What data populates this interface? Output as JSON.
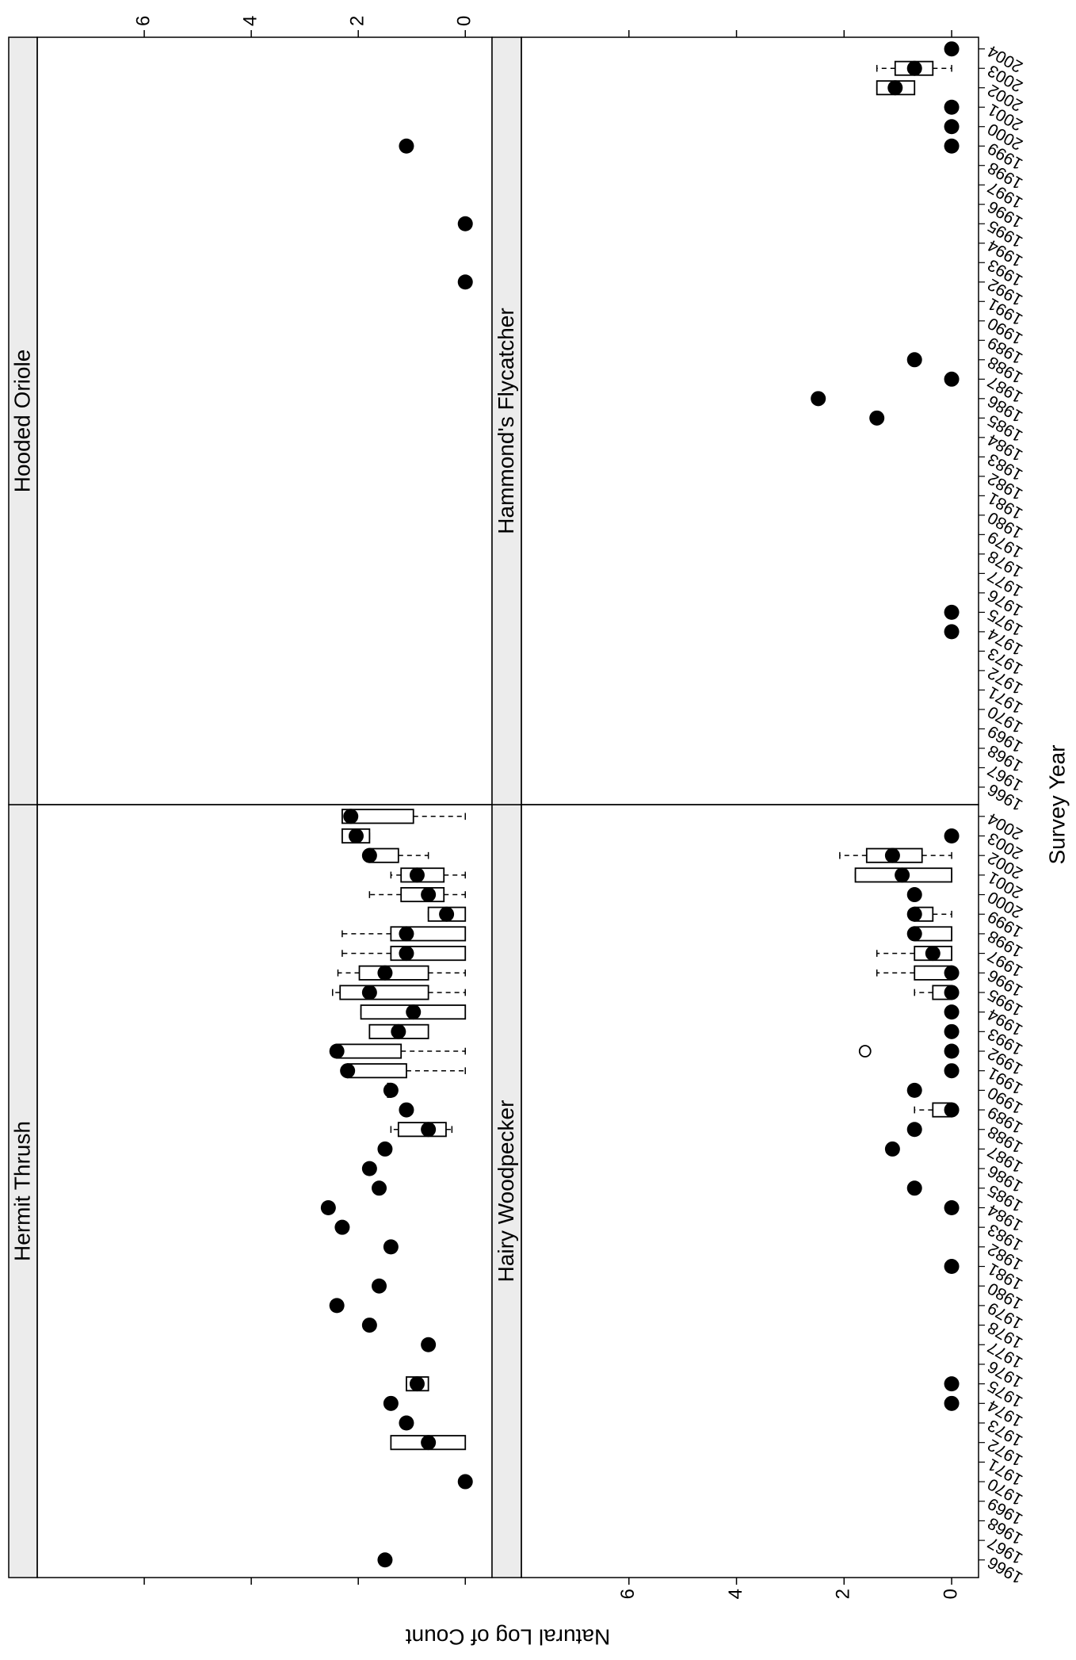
{
  "chart_data": {
    "type": "boxplot",
    "xlabel": "Survey Year",
    "ylabel": "Natural Log of Count",
    "xlim": [
      1965.1,
      2004.6
    ],
    "ylim": [
      -0.5,
      8
    ],
    "xticks": [
      1966,
      1967,
      1968,
      1969,
      1970,
      1971,
      1972,
      1973,
      1974,
      1975,
      1976,
      1977,
      1978,
      1979,
      1980,
      1981,
      1982,
      1983,
      1984,
      1985,
      1986,
      1987,
      1988,
      1989,
      1990,
      1991,
      1992,
      1993,
      1994,
      1995,
      1996,
      1997,
      1998,
      1999,
      2000,
      2001,
      2002,
      2003,
      2004
    ],
    "yticks": [
      0,
      2,
      4,
      6
    ],
    "color": "#000000",
    "panels": [
      {
        "title": "Hermit Thrush",
        "x": [
          1966,
          1970,
          1972,
          1973,
          1974,
          1975,
          1977,
          1978,
          1979,
          1980,
          1982,
          1983,
          1984,
          1985,
          1986,
          1987,
          1988,
          1989,
          1990,
          1991,
          1992,
          1993,
          1994,
          1995,
          1996,
          1997,
          1998,
          1999,
          2000,
          2001,
          2002,
          2003,
          2004
        ],
        "median": [
          1.5,
          0,
          0.69,
          1.1,
          1.39,
          0.9,
          0.69,
          1.79,
          2.4,
          1.61,
          1.39,
          2.3,
          2.56,
          1.61,
          1.79,
          1.5,
          0.69,
          1.1,
          1.39,
          2.2,
          2.4,
          1.25,
          0.97,
          1.79,
          1.5,
          1.1,
          1.1,
          0.35,
          0.69,
          0.9,
          1.79,
          2.04,
          2.14
        ],
        "boxes": [
          {
            "x": 1972,
            "whisker_low": 0,
            "q1": 0,
            "q3": 1.39,
            "whisker_high": 1.39
          },
          {
            "x": 1975,
            "whisker_low": 0.69,
            "q1": 0.69,
            "q3": 1.1,
            "whisker_high": 1.1
          },
          {
            "x": 1988,
            "whisker_low": 0.25,
            "q1": 0.36,
            "q3": 1.25,
            "whisker_high": 1.39
          },
          {
            "x": 1990,
            "whisker_low": 1.3,
            "q1": 1.39,
            "q3": 1.45,
            "whisker_high": 1.5
          },
          {
            "x": 1991,
            "whisker_low": 0,
            "q1": 1.1,
            "q3": 2.2,
            "whisker_high": 2.2
          },
          {
            "x": 1992,
            "whisker_low": 0,
            "q1": 1.2,
            "q3": 2.4,
            "whisker_high": 2.45
          },
          {
            "x": 1993,
            "whisker_low": 0.69,
            "q1": 0.69,
            "q3": 1.79,
            "whisker_high": 1.79
          },
          {
            "x": 1994,
            "whisker_low": 0,
            "q1": 0,
            "q3": 1.95,
            "whisker_high": 1.95
          },
          {
            "x": 1995,
            "whisker_low": 0,
            "q1": 0.69,
            "q3": 2.34,
            "whisker_high": 2.48
          },
          {
            "x": 1996,
            "whisker_low": 0,
            "q1": 0.69,
            "q3": 1.98,
            "whisker_high": 2.38
          },
          {
            "x": 1997,
            "whisker_low": 0,
            "q1": 0,
            "q3": 1.39,
            "whisker_high": 2.3
          },
          {
            "x": 1998,
            "whisker_low": 0,
            "q1": 0,
            "q3": 1.39,
            "whisker_high": 2.3
          },
          {
            "x": 1999,
            "whisker_low": 0,
            "q1": 0,
            "q3": 0.69,
            "whisker_high": 0.69
          },
          {
            "x": 2000,
            "whisker_low": 0,
            "q1": 0.4,
            "q3": 1.2,
            "whisker_high": 1.79
          },
          {
            "x": 2001,
            "whisker_low": 0,
            "q1": 0.4,
            "q3": 1.2,
            "whisker_high": 1.39
          },
          {
            "x": 2002,
            "whisker_low": 0.69,
            "q1": 1.25,
            "q3": 1.79,
            "whisker_high": 1.79
          },
          {
            "x": 2003,
            "whisker_low": 1.79,
            "q1": 1.79,
            "q3": 2.3,
            "whisker_high": 2.3
          },
          {
            "x": 2004,
            "whisker_low": 0,
            "q1": 0.97,
            "q3": 2.3,
            "whisker_high": 2.3
          }
        ],
        "outliers": []
      },
      {
        "title": "Hooded Oriole",
        "x": [
          1992,
          1995,
          1999
        ],
        "median": [
          0,
          0,
          1.1
        ],
        "boxes": [],
        "outliers": []
      },
      {
        "title": "Hairy Woodpecker",
        "x": [
          1974,
          1975,
          1981,
          1984,
          1985,
          1987,
          1988,
          1989,
          1990,
          1991,
          1992,
          1993,
          1994,
          1995,
          1996,
          1997,
          1998,
          1999,
          2000,
          2001,
          2002,
          2003
        ],
        "median": [
          0,
          0,
          0,
          0,
          0.69,
          1.1,
          0.69,
          0,
          0.69,
          0,
          0,
          0,
          0,
          0,
          0,
          0.35,
          0.69,
          0.69,
          0.69,
          0.92,
          1.1,
          0
        ],
        "boxes": [
          {
            "x": 1989,
            "whisker_low": 0,
            "q1": 0,
            "q3": 0.35,
            "whisker_high": 0.69
          },
          {
            "x": 1995,
            "whisker_low": 0,
            "q1": 0,
            "q3": 0.35,
            "whisker_high": 0.69
          },
          {
            "x": 1996,
            "whisker_low": 0,
            "q1": 0,
            "q3": 0.69,
            "whisker_high": 1.39
          },
          {
            "x": 1997,
            "whisker_low": 0,
            "q1": 0,
            "q3": 0.69,
            "whisker_high": 1.39
          },
          {
            "x": 1998,
            "whisker_low": 0,
            "q1": 0,
            "q3": 0.69,
            "whisker_high": 0.69
          },
          {
            "x": 1999,
            "whisker_low": 0,
            "q1": 0.35,
            "q3": 0.69,
            "whisker_high": 0.69
          },
          {
            "x": 2001,
            "whisker_low": 0,
            "q1": 0,
            "q3": 1.79,
            "whisker_high": 1.79
          },
          {
            "x": 2002,
            "whisker_low": 0,
            "q1": 0.55,
            "q3": 1.58,
            "whisker_high": 2.08
          }
        ],
        "outliers": [
          {
            "x": 1992,
            "y": 1.61
          }
        ]
      },
      {
        "title": "Hammond's Flycatcher",
        "x": [
          1974,
          1975,
          1985,
          1986,
          1987,
          1988,
          1999,
          2000,
          2001,
          2002,
          2003,
          2004
        ],
        "median": [
          0,
          0,
          1.39,
          2.48,
          0,
          0.69,
          0,
          0,
          0,
          1.05,
          0.69,
          0
        ],
        "boxes": [
          {
            "x": 2002,
            "whisker_low": 0.69,
            "q1": 0.69,
            "q3": 1.39,
            "whisker_high": 1.39
          },
          {
            "x": 2003,
            "whisker_low": 0,
            "q1": 0.35,
            "q3": 1.05,
            "whisker_high": 1.39
          }
        ],
        "outliers": []
      }
    ]
  }
}
